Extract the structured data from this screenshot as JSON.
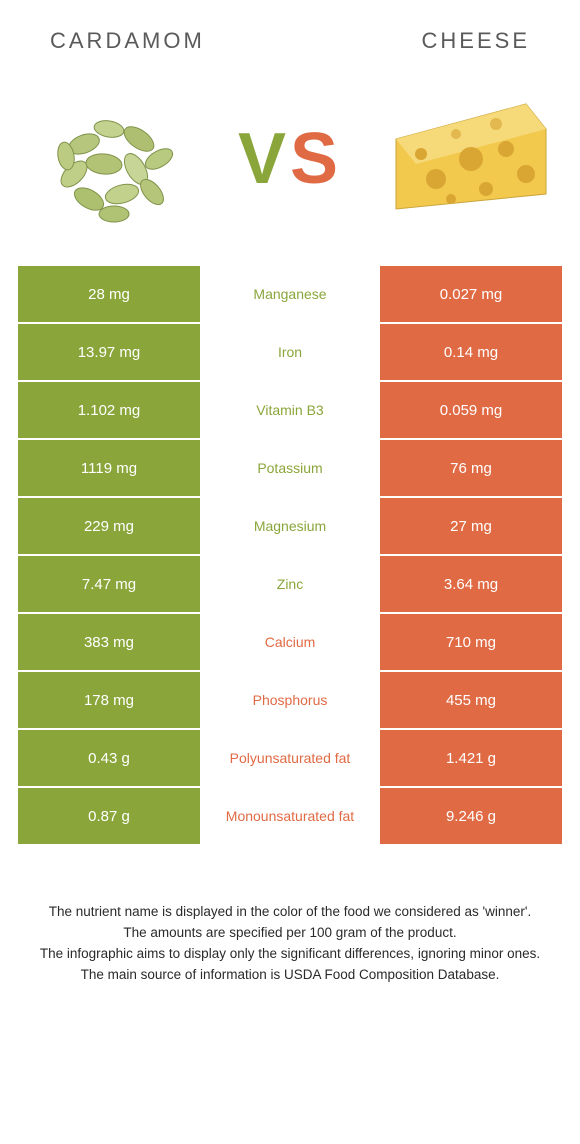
{
  "header": {
    "left": "CARDAMOM",
    "right": "CHEESE"
  },
  "vs": {
    "v": "V",
    "s": "S"
  },
  "colors": {
    "left": "#8aa63a",
    "right": "#e06a44"
  },
  "rows": [
    {
      "left": "28 mg",
      "label": "Manganese",
      "right": "0.027 mg",
      "winner": "left"
    },
    {
      "left": "13.97 mg",
      "label": "Iron",
      "right": "0.14 mg",
      "winner": "left"
    },
    {
      "left": "1.102 mg",
      "label": "Vitamin B3",
      "right": "0.059 mg",
      "winner": "left"
    },
    {
      "left": "1119 mg",
      "label": "Potassium",
      "right": "76 mg",
      "winner": "left"
    },
    {
      "left": "229 mg",
      "label": "Magnesium",
      "right": "27 mg",
      "winner": "left"
    },
    {
      "left": "7.47 mg",
      "label": "Zinc",
      "right": "3.64 mg",
      "winner": "left"
    },
    {
      "left": "383 mg",
      "label": "Calcium",
      "right": "710 mg",
      "winner": "right"
    },
    {
      "left": "178 mg",
      "label": "Phosphorus",
      "right": "455 mg",
      "winner": "right"
    },
    {
      "left": "0.43 g",
      "label": "Polyunsaturated fat",
      "right": "1.421 g",
      "winner": "right"
    },
    {
      "left": "0.87 g",
      "label": "Monounsaturated fat",
      "right": "9.246 g",
      "winner": "right"
    }
  ],
  "notes": [
    "The nutrient name is displayed in the color of the food we considered as 'winner'.",
    "The amounts are specified per 100 gram of the product.",
    "The infographic aims to display only the significant differences, ignoring minor ones.",
    "The main source of information is USDA Food Composition Database."
  ]
}
